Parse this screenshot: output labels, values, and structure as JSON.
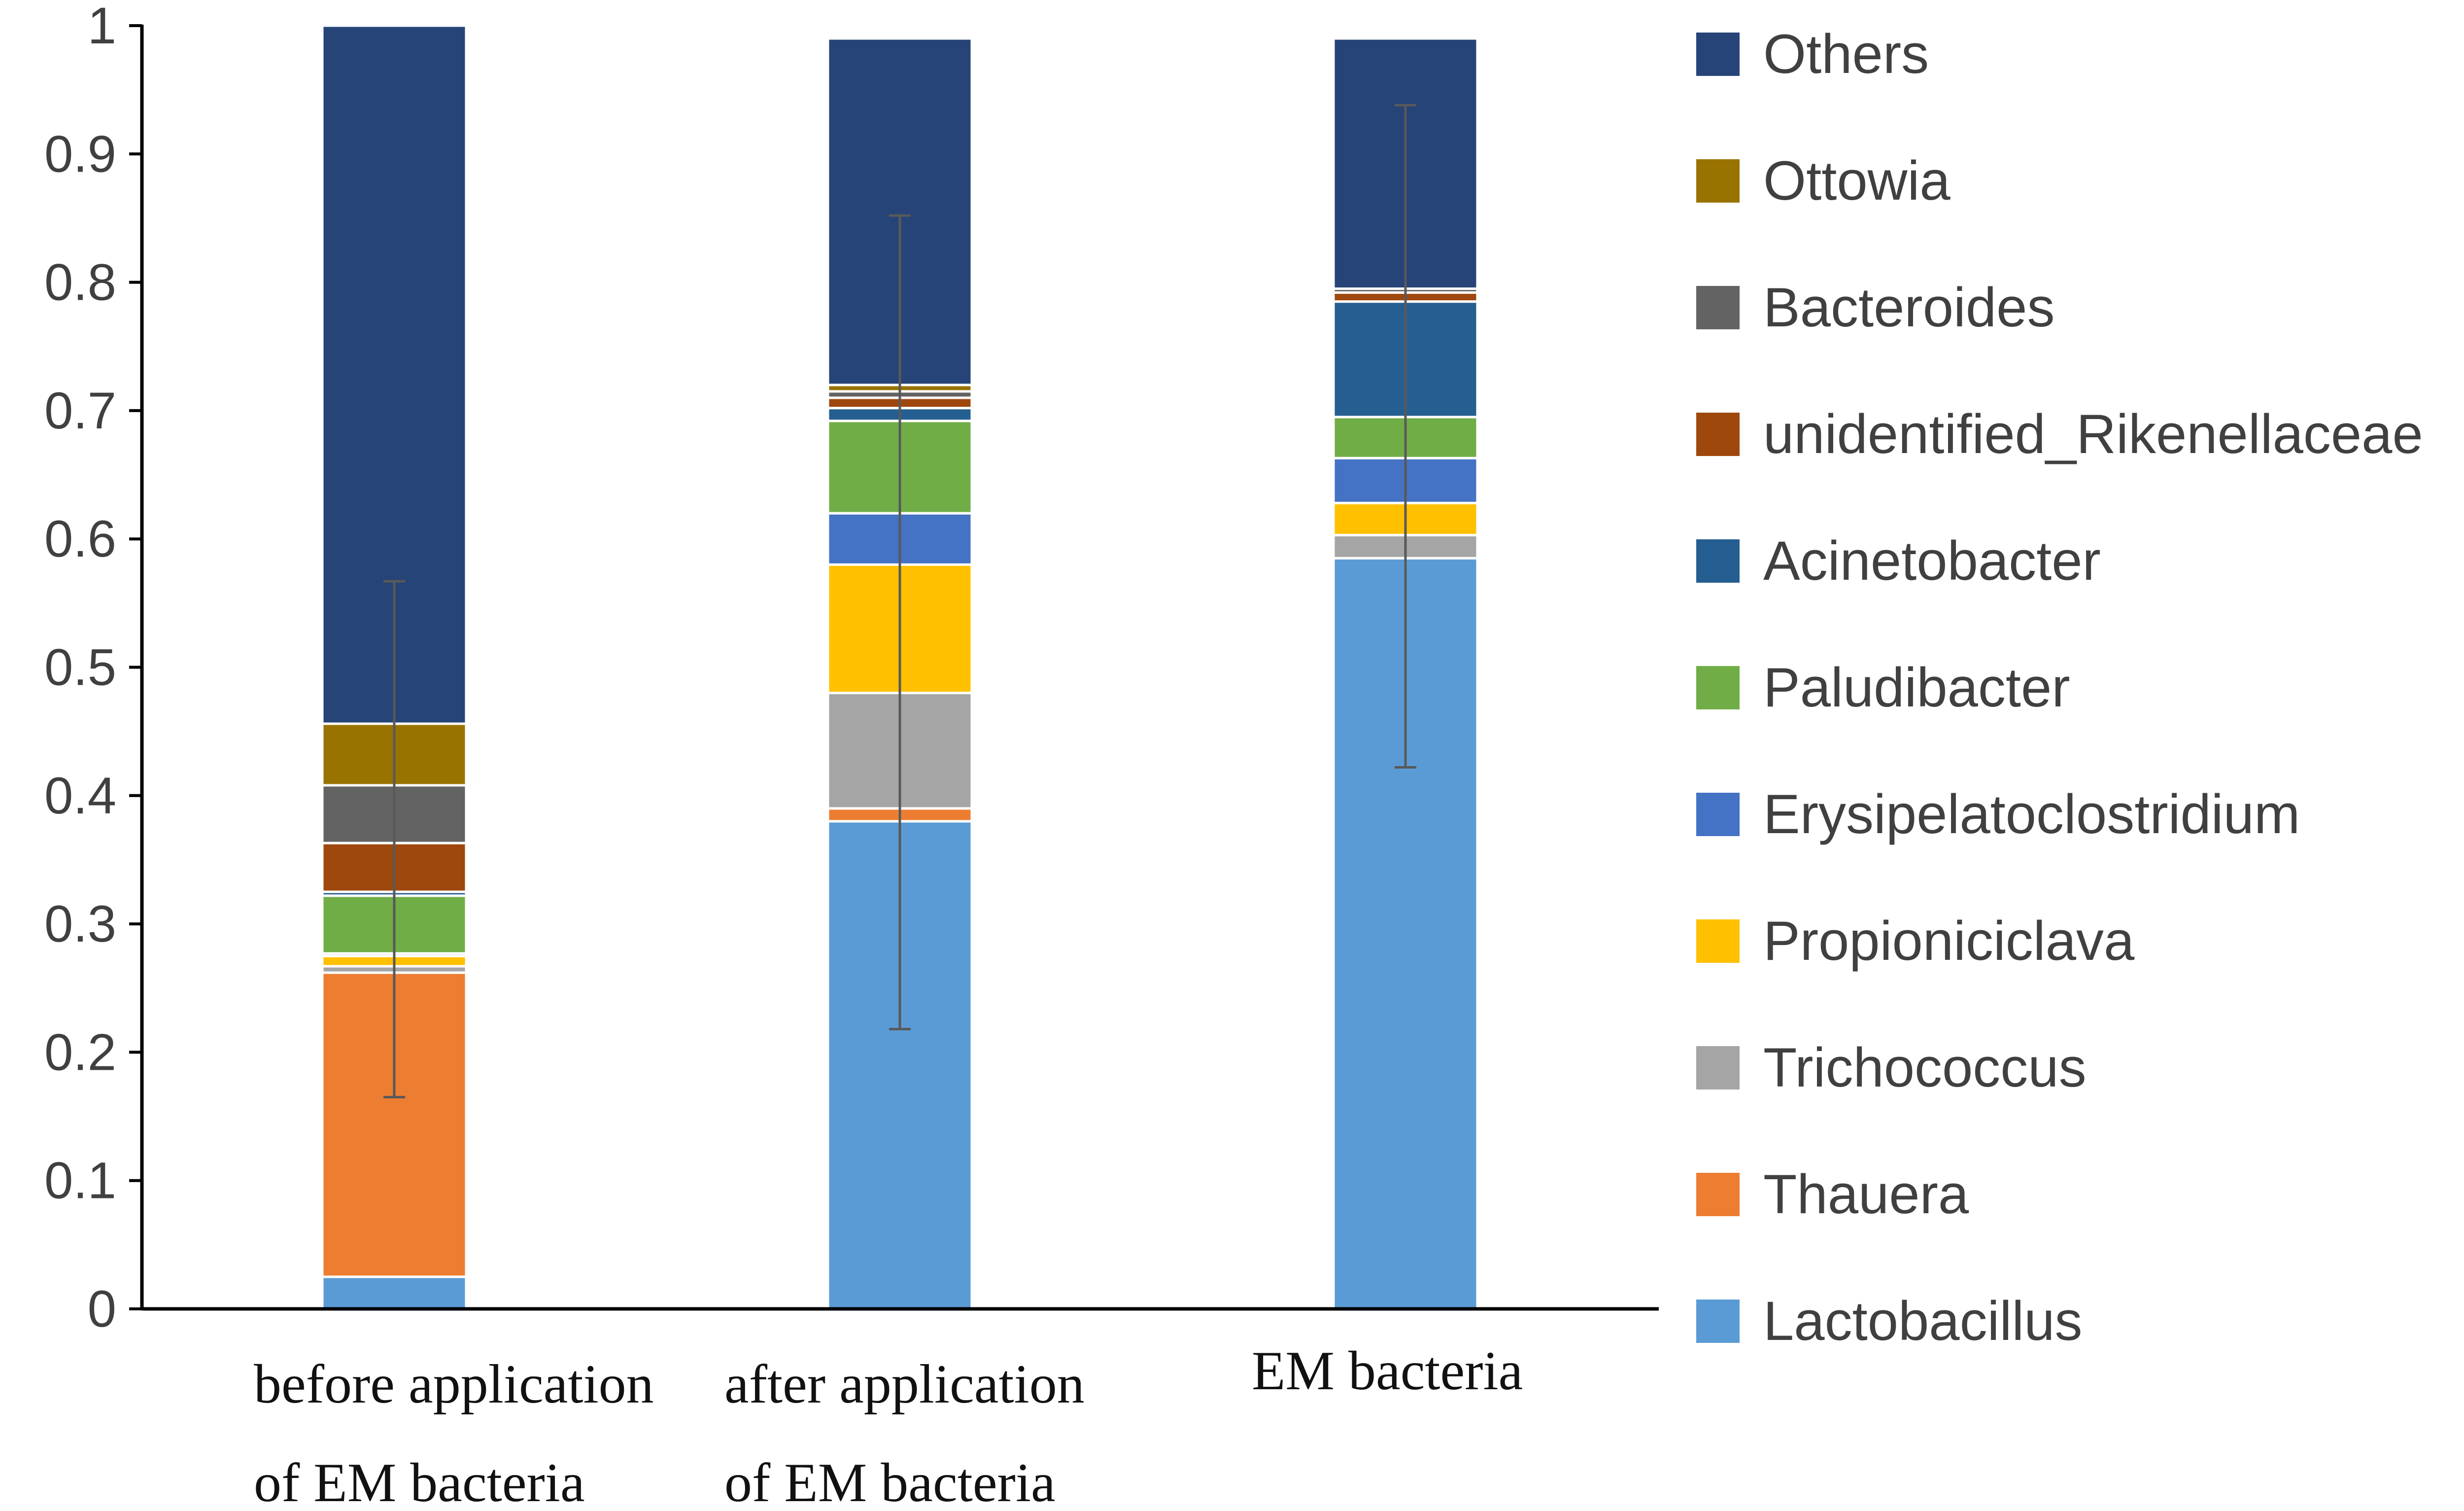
{
  "chart_data": {
    "type": "bar",
    "stacked": true,
    "title": "",
    "xlabel": "",
    "ylabel": "",
    "ylim": [
      0,
      1
    ],
    "yticks": [
      "0",
      "0.1",
      "0.2",
      "0.3",
      "0.4",
      "0.5",
      "0.6",
      "0.7",
      "0.8",
      "0.9",
      "1"
    ],
    "grid": false,
    "legend_position": "right",
    "categories": [
      [
        "before application",
        "of EM bacteria"
      ],
      [
        "after application",
        "of EM bacteria"
      ],
      [
        "EM bacteria"
      ]
    ],
    "series": [
      {
        "name": "Lactobacillus",
        "color": "#5b9bd5",
        "values": [
          0.025,
          0.38,
          0.585
        ]
      },
      {
        "name": "Thauera",
        "color": "#ed7d31",
        "values": [
          0.237,
          0.01,
          0.0
        ]
      },
      {
        "name": "Trichococcus",
        "color": "#a5a5a5",
        "values": [
          0.005,
          0.09,
          0.018
        ]
      },
      {
        "name": "Propioniciclava",
        "color": "#ffc000",
        "values": [
          0.008,
          0.1,
          0.025
        ]
      },
      {
        "name": "Erysipelatoclostridium",
        "color": "#4472c4",
        "values": [
          0.002,
          0.04,
          0.035
        ]
      },
      {
        "name": "Paludibacter",
        "color": "#70ad47",
        "values": [
          0.045,
          0.072,
          0.032
        ]
      },
      {
        "name": "Acinetobacter",
        "color": "#255e91",
        "values": [
          0.003,
          0.01,
          0.09
        ]
      },
      {
        "name": "unidentified_Rikenellaceae",
        "color": "#9e480e",
        "values": [
          0.038,
          0.008,
          0.007
        ]
      },
      {
        "name": "Bacteroides",
        "color": "#636363",
        "values": [
          0.045,
          0.005,
          0.003
        ]
      },
      {
        "name": "Ottowia",
        "color": "#997300",
        "values": [
          0.048,
          0.005,
          0.0
        ]
      },
      {
        "name": "Others",
        "color": "#264478",
        "values": [
          0.544,
          0.27,
          0.195
        ]
      }
    ],
    "legend_order": [
      "Others",
      "Ottowia",
      "Bacteroides",
      "unidentified_Rikenellaceae",
      "Acinetobacter",
      "Paludibacter",
      "Erysipelatoclostridium",
      "Propioniciclava",
      "Trichococcus",
      "Thauera",
      "Lactobacillus"
    ],
    "error_bars": [
      {
        "center": 0.367,
        "low": 0.165,
        "high": 0.567
      },
      {
        "center": 0.535,
        "low": 0.218,
        "high": 0.852
      },
      {
        "center": 0.68,
        "low": 0.422,
        "high": 0.938
      }
    ]
  }
}
